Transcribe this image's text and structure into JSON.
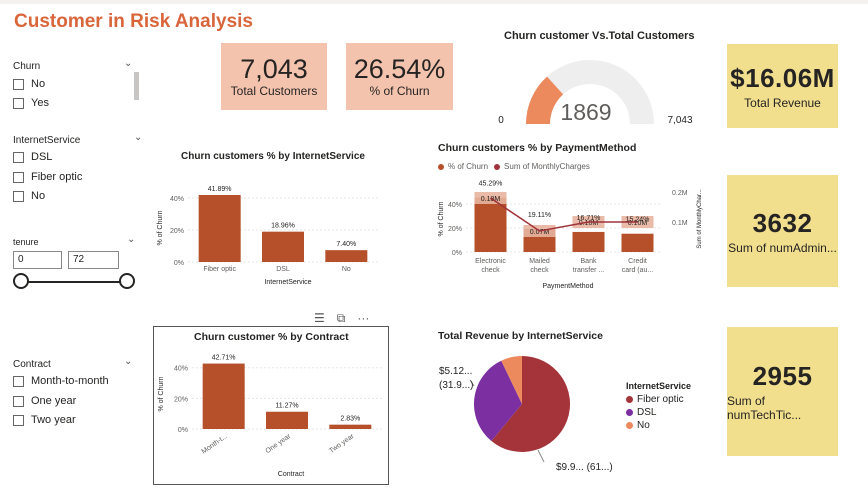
{
  "header": {
    "title": "Customer in Risk Analysis"
  },
  "slicers": {
    "churn": {
      "label": "Churn",
      "options": [
        "No",
        "Yes"
      ]
    },
    "internet": {
      "label": "InternetService",
      "options": [
        "DSL",
        "Fiber optic",
        "No"
      ]
    },
    "tenure": {
      "label": "tenure",
      "min": "0",
      "max": "72"
    },
    "contract": {
      "label": "Contract",
      "options": [
        "Month-to-month",
        "One year",
        "Two year"
      ]
    }
  },
  "kpis": {
    "total_customers": {
      "value": "7,043",
      "label": "Total Customers"
    },
    "churn_pct": {
      "value": "26.54%",
      "label": "% of Churn"
    },
    "total_revenue": {
      "value": "$16.06M",
      "label": "Total Revenue"
    },
    "num_admin": {
      "value": "3632",
      "label": "Sum of numAdmin..."
    },
    "num_tech": {
      "value": "2955",
      "label": "Sum of numTechTic..."
    }
  },
  "colors": {
    "accent": "#d9653b",
    "bar": "#b5502a",
    "bar_light": "#e8b49f",
    "line": "#a0333a",
    "kpi_pink": "#f4c3ad",
    "kpi_yellow": "#f2df8e",
    "fiber": "#a4343a",
    "dsl": "#7b2fa0",
    "no": "#ec8a5e"
  },
  "chart_data": [
    {
      "type": "gauge",
      "title": "Churn customer Vs.Total Customers",
      "value": 1869,
      "value_label": "1869",
      "min": 0,
      "max": 7043,
      "min_label": "0",
      "max_label": "7,043"
    },
    {
      "type": "bar",
      "title": "Churn customers % by InternetService",
      "categories": [
        "Fiber optic",
        "DSL",
        "No"
      ],
      "values": [
        41.89,
        18.96,
        7.4
      ],
      "labels": [
        "41.89%",
        "18.96%",
        "7.40%"
      ],
      "xlabel": "InternetService",
      "ylabel": "% of Churn",
      "yticks": [
        "0%",
        "20%",
        "40%"
      ],
      "ylim": [
        0,
        45
      ]
    },
    {
      "type": "bar",
      "title": "Churn customers % by PaymentMethod",
      "legend": [
        "% of Churn",
        "Sum of MonthlyCharges"
      ],
      "categories": [
        "Electronic check",
        "Mailed check",
        "Bank transfer ...",
        "Credit card (au..."
      ],
      "category_lines": [
        [
          "Electronic",
          "check"
        ],
        [
          "Mailed",
          "check"
        ],
        [
          "Bank",
          "transfer ..."
        ],
        [
          "Credit",
          "card (au..."
        ]
      ],
      "series": [
        {
          "name": "% of Churn",
          "values": [
            45.29,
            19.11,
            16.71,
            15.24
          ],
          "labels": [
            "45.29%",
            "19.11%",
            "16.71%",
            "15.24%"
          ]
        },
        {
          "name": "Sum of MonthlyCharges",
          "values": [
            0.18,
            0.07,
            0.1,
            0.1
          ],
          "labels": [
            "0.18M",
            "0.07M",
            "0.10M",
            "0.10M"
          ]
        }
      ],
      "xlabel": "PaymentMethod",
      "ylabel": "% of Churn",
      "y2label": "Sum of MonthlyChar...",
      "yticks": [
        "0%",
        "20%",
        "40%"
      ],
      "y2ticks": [
        "0.1M",
        "0.2M"
      ],
      "ylim": [
        0,
        50
      ],
      "y2lim": [
        0,
        0.2
      ]
    },
    {
      "type": "bar",
      "title": "Churn customer % by Contract",
      "categories": [
        "Month-t...",
        "One year",
        "Two year"
      ],
      "values": [
        42.71,
        11.27,
        2.83
      ],
      "labels": [
        "42.71%",
        "11.27%",
        "2.83%"
      ],
      "xlabel": "Contract",
      "ylabel": "% of Churn",
      "yticks": [
        "0%",
        "20%",
        "40%"
      ],
      "ylim": [
        0,
        47
      ]
    },
    {
      "type": "pie",
      "title": "Total Revenue by InternetService",
      "legend_title": "InternetService",
      "categories": [
        "Fiber optic",
        "DSL",
        "No"
      ],
      "values": [
        61,
        31.9,
        7.1
      ],
      "labels": [
        "$9.9... (61...)",
        "$5.12... (31.9...)",
        ""
      ],
      "label_parts": [
        [
          "$9.9... (61...)"
        ],
        [
          "$5.12...",
          "(31.9...)"
        ]
      ]
    }
  ]
}
